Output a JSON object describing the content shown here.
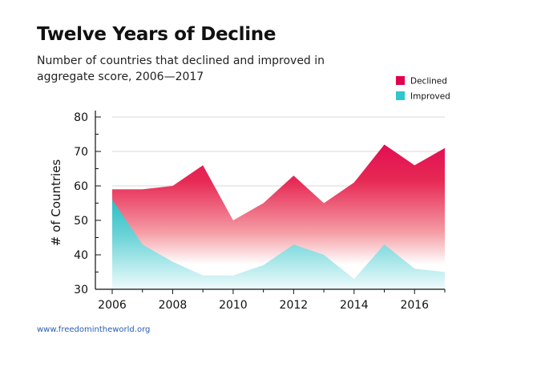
{
  "chart_data": {
    "type": "area",
    "title": "Twelve Years of Decline",
    "subtitle": "Number of countries that declined and improved in aggregate score, 2006—2017",
    "xlabel": "",
    "ylabel": "# of Countries",
    "xlim": [
      2006,
      2017
    ],
    "ylim": [
      30,
      80
    ],
    "x": [
      2006,
      2007,
      2008,
      2009,
      2010,
      2011,
      2012,
      2013,
      2014,
      2015,
      2016,
      2017
    ],
    "x_tick_labels": [
      "2006",
      "2008",
      "2010",
      "2012",
      "2014",
      "2016"
    ],
    "x_tick_values": [
      2006,
      2008,
      2010,
      2012,
      2014,
      2016
    ],
    "y_tick_values": [
      30,
      40,
      50,
      60,
      70,
      80
    ],
    "y_tick_labels": [
      "30",
      "40",
      "50",
      "60",
      "70",
      "80"
    ],
    "grid": true,
    "legend_position": "top-right",
    "series": [
      {
        "name": "Declined",
        "values": [
          59,
          59,
          60,
          66,
          50,
          55,
          63,
          55,
          61,
          72,
          66,
          71
        ],
        "color": "#e0004d"
      },
      {
        "name": "Improved",
        "values": [
          56,
          43,
          38,
          34,
          34,
          37,
          43,
          40,
          33,
          43,
          36,
          35
        ],
        "color": "#2fc6cc"
      }
    ]
  },
  "source": "www.freedomintheworld.org"
}
